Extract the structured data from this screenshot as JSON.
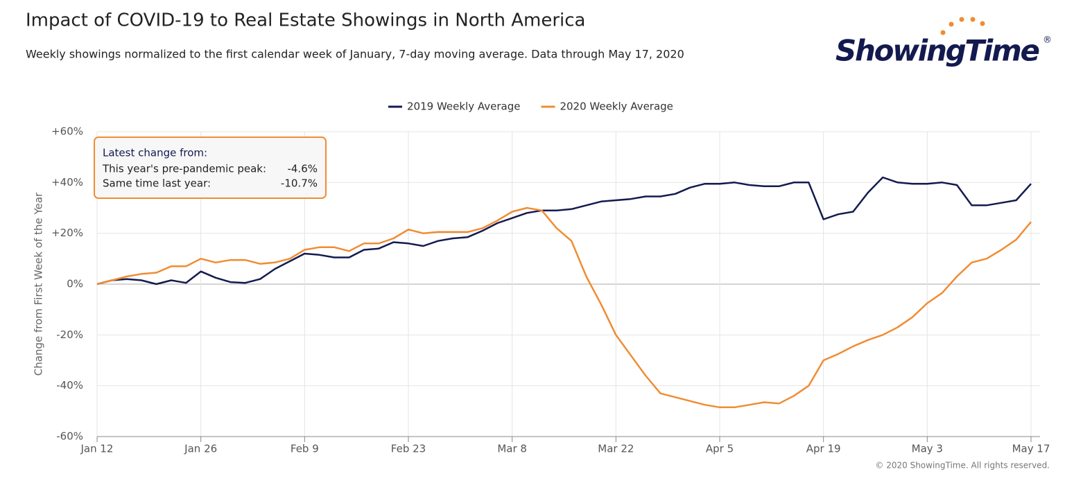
{
  "chart_data": {
    "type": "line",
    "title": "Impact of COVID-19 to Real Estate Showings in North America",
    "subtitle": "Weekly showings normalized to the first calendar week of January, 7-day moving average. Data through May 17, 2020",
    "logo": "ShowingTime",
    "logo_mark": "®",
    "y_label": "Change from First Week of the Year",
    "copyright": "© 2020 ShowingTime. All rights reserved.",
    "annotation": {
      "title": "Latest change from:",
      "rows": [
        [
          "This year's pre-pandemic peak:",
          "-4.6%"
        ],
        [
          "Same time last year:",
          "-10.7%"
        ]
      ]
    },
    "categories": [
      "Jan 12",
      null,
      null,
      null,
      null,
      null,
      null,
      "Jan 26",
      null,
      null,
      null,
      null,
      null,
      null,
      "Feb 9",
      null,
      null,
      null,
      null,
      null,
      null,
      "Feb 23",
      null,
      null,
      null,
      null,
      null,
      null,
      "Mar 8",
      null,
      null,
      null,
      null,
      null,
      null,
      "Mar 22",
      null,
      null,
      null,
      null,
      null,
      null,
      "Apr 5",
      null,
      null,
      null,
      null,
      null,
      null,
      "Apr 19",
      null,
      null,
      null,
      null,
      null,
      null,
      "May 3",
      null,
      null,
      null,
      null,
      null,
      null,
      "May 17"
    ],
    "series": [
      {
        "name": "2019 Weekly Average",
        "color": "#131a4f",
        "values": [
          0,
          1.5,
          2,
          1.5,
          0,
          1.5,
          0.5,
          5,
          2.5,
          0.8,
          0.5,
          2,
          6,
          9,
          12,
          11.5,
          10.5,
          10.5,
          13.5,
          14,
          16.5,
          16,
          15,
          17,
          18,
          18.5,
          21,
          24,
          26,
          28,
          29,
          29,
          29.5,
          31,
          32.5,
          33,
          33.5,
          34.5,
          34.5,
          35.5,
          38,
          39.5,
          39.5,
          40,
          39,
          38.5,
          38.5,
          40,
          40,
          25.5,
          27.5,
          28.5,
          36,
          42,
          40,
          39.5,
          39.5,
          40,
          39,
          31,
          31,
          32,
          33,
          39.5
        ]
      },
      {
        "name": "2020 Weekly Average",
        "color": "#f08c32",
        "values": [
          0,
          1.5,
          3,
          4,
          4.5,
          7,
          7,
          10,
          8.5,
          9.5,
          9.5,
          8,
          8.5,
          10,
          13.5,
          14.5,
          14.5,
          13,
          16,
          16,
          18,
          21.5,
          20,
          20.5,
          20.5,
          20.5,
          22,
          25,
          28.5,
          30,
          29,
          22,
          17,
          3,
          -8,
          -20,
          -28,
          -36,
          -43,
          -44.5,
          -46,
          -47.5,
          -48.5,
          -48.5,
          -47.5,
          -46.5,
          -47,
          -44,
          -40,
          -30,
          -27.5,
          -24.5,
          -22,
          -20,
          -17,
          -13,
          -7.5,
          -3.5,
          3,
          8.5,
          10,
          13.5,
          17.5,
          24.5
        ]
      }
    ],
    "ylim": [
      -60,
      60
    ],
    "yticks": [
      {
        "value": -60,
        "label": "-60%"
      },
      {
        "value": -40,
        "label": "-40%"
      },
      {
        "value": -20,
        "label": "-20%"
      },
      {
        "value": 0,
        "label": "0%"
      },
      {
        "value": 20,
        "label": "+20%"
      },
      {
        "value": 40,
        "label": "+40%"
      },
      {
        "value": 60,
        "label": "+60%"
      }
    ],
    "grid": true,
    "legend": "top"
  }
}
